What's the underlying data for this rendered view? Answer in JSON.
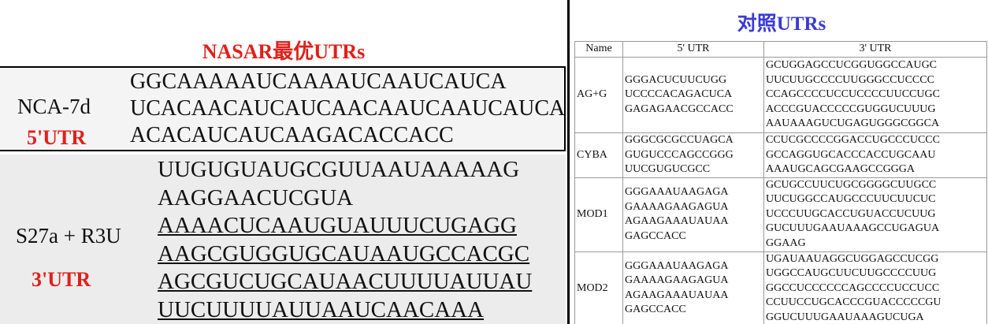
{
  "left": {
    "title": "NASAR最优UTRs",
    "blocks": [
      {
        "name": "NCA-7d",
        "region": "5'UTR",
        "lines": [
          "GGCAAAAAUCAAAAUCAAUCAUCA",
          "UCACAACAUCAUCAACAAUCAAUCAUCA",
          "ACACAUCAUCAAGACACCACC"
        ]
      },
      {
        "name": "S27a + R3U",
        "region": "3'UTR",
        "lines": [
          "UUGUGUAUGCGUUAAUAAAAAG",
          "AAGGAACUCGUA",
          "AAAACUCAAUGUAUUUCUGAGG",
          "AAGCGUGGUGCAUAAUGCCACGC",
          "AGCGUCUGCAUAACUUUUAUUAU",
          "UUCUUUUAUUAAUCAACAAA"
        ]
      }
    ]
  },
  "right": {
    "title": "对照UTRs",
    "table": {
      "header": [
        "Name",
        "5' UTR",
        "3' UTR"
      ],
      "rows": [
        [
          "AG+G",
          [
            "GGGACUCUUCUGG",
            "UCCCCACAGACUCA",
            "GAGAGAACGCCACC"
          ],
          [
            "GCUGGAGCCUCGGUGGCCAUGC",
            "UUCUUGCCCCUUGGGCCUCCCC",
            "CCAGCCCCUCCUCCCCUUCCUGC",
            "ACCCGUACCCCCGUGGUCUUUG",
            "AAUAAAGUCUGAGUGGGCGGCA"
          ]
        ],
        [
          "CYBA",
          [
            "GGGCGCGCCUAGCA",
            "GUGUCCCAGCCGGG",
            "UUCGUGUCGCC"
          ],
          [
            "CCUCGCCCCGGACCUGCCCUCCC",
            "GCCAGGUGCACCCACCUGCAAU",
            "AAAUGCAGCGAAGCCGGGA"
          ]
        ],
        [
          "MOD1",
          [
            "GGGAAAUAAGAGA",
            "GAAAAGAAGAGUA",
            "AGAAGAAAUAUAA",
            "GAGCCACC"
          ],
          [
            "GCUGCCUUCUGCGGGGCUUGCC",
            "UUCUGGCCAUGCCCUUCUUCUC",
            "UCCCUUGCACCUGUACCUCUUG",
            "GUCUUUGAAUAAAGCCUGAGUA",
            "GGAAG"
          ]
        ],
        [
          "MOD2",
          [
            "GGGAAAUAAGAGA",
            "GAAAAGAAGAGUA",
            "AGAAGAAAUAUAA",
            "GAGCCACC"
          ],
          [
            "UGAUAAUAGGCUGGAGCCUCGG",
            "UGGCCAUGCUUCUUGCCCCUUG",
            "GGCCUCCCCCCAGCCCCUCCUCC",
            "CCUUCCUGCACCCGUACCCCCGU",
            "GGUCUUUGAAUAAAGUCUGA"
          ]
        ]
      ]
    }
  }
}
